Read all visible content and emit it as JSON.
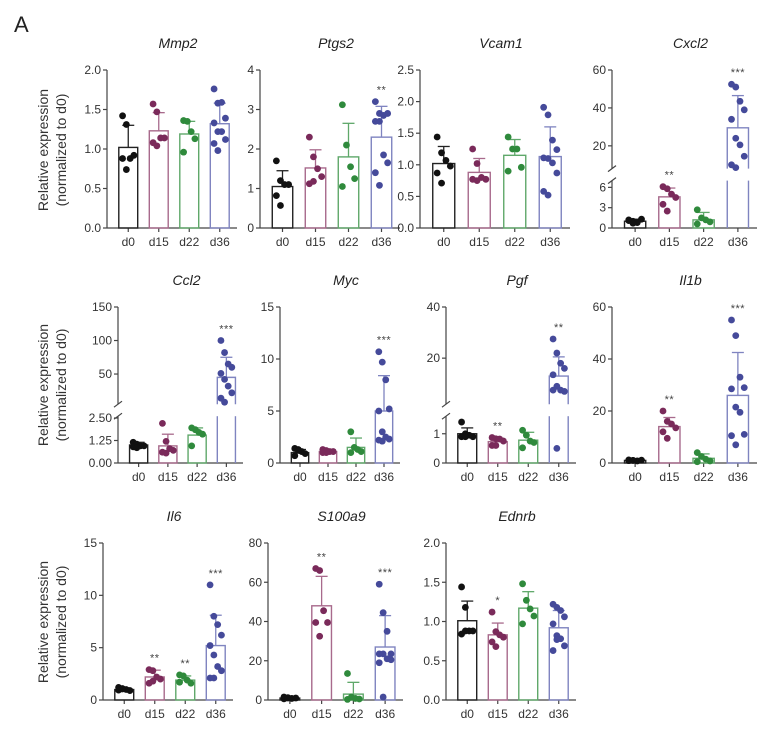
{
  "figure": {
    "panel_label": "A",
    "ylabel_line1": "Relative expression",
    "ylabel_line2": "(normalized to d0)"
  },
  "colors": {
    "d0": "#111111",
    "d15": "#7a2a5a",
    "d22": "#2f8a3c",
    "d36": "#454a9a",
    "bar_d0": "#222222",
    "bar_d15": "#a86a8c",
    "bar_d22": "#5fa86a",
    "bar_d36": "#7f84c0",
    "axis": "#444444"
  },
  "chart_data": [
    {
      "type": "bar",
      "title": "Mmp2",
      "categories": [
        "d0",
        "d15",
        "d22",
        "d36"
      ],
      "ylabel": "Relative expression (normalized to d0)",
      "yticks": [
        0.0,
        0.5,
        1.0,
        1.5,
        2.0
      ],
      "ytick_labels": [
        "0.0",
        "0.5",
        "1.0",
        "1.5",
        "2.0"
      ],
      "ylim": [
        0,
        2.0
      ],
      "means": [
        1.02,
        1.23,
        1.19,
        1.32
      ],
      "sd_upper": [
        1.3,
        1.46,
        1.35,
        1.58
      ],
      "points": [
        [
          1.42,
          1.31,
          0.88,
          0.92,
          0.88,
          0.74
        ],
        [
          1.57,
          1.47,
          1.14,
          1.14,
          1.08,
          1.04
        ],
        [
          1.36,
          1.35,
          1.22,
          1.13,
          0.96
        ],
        [
          1.76,
          1.58,
          1.59,
          1.39,
          1.33,
          1.22,
          1.22,
          1.12,
          1.07,
          0.98
        ]
      ],
      "significance": [
        "",
        "",
        "",
        ""
      ]
    },
    {
      "type": "bar",
      "title": "Ptgs2",
      "categories": [
        "d0",
        "d15",
        "d22",
        "d36"
      ],
      "yticks": [
        0,
        1,
        2,
        3,
        4
      ],
      "ytick_labels": [
        "0",
        "1",
        "2",
        "3",
        "4"
      ],
      "ylim": [
        0,
        4
      ],
      "means": [
        1.05,
        1.52,
        1.8,
        2.3
      ],
      "sd_upper": [
        1.45,
        1.98,
        2.65,
        3.08
      ],
      "points": [
        [
          1.7,
          1.2,
          1.1,
          1.1,
          0.82,
          0.57
        ],
        [
          2.3,
          1.8,
          1.5,
          1.3,
          1.12,
          1.18
        ],
        [
          3.12,
          2.1,
          1.55,
          1.25,
          1.05
        ],
        [
          3.2,
          2.9,
          2.85,
          2.9,
          2.7,
          2.7,
          1.85,
          1.65,
          1.4,
          1.08
        ]
      ],
      "significance": [
        "",
        "",
        "",
        "**"
      ]
    },
    {
      "type": "bar",
      "title": "Vcam1",
      "categories": [
        "d0",
        "d15",
        "d22",
        "d36"
      ],
      "yticks": [
        0.0,
        0.5,
        1.0,
        1.5,
        2.0,
        2.5
      ],
      "ytick_labels": [
        "0.0",
        "0.5",
        "1.0",
        "1.5",
        "2.0",
        "2.5"
      ],
      "ylim": [
        0,
        2.5
      ],
      "means": [
        1.02,
        0.88,
        1.15,
        1.13
      ],
      "sd_upper": [
        1.29,
        1.1,
        1.4,
        1.6
      ],
      "points": [
        [
          1.44,
          1.19,
          1.07,
          0.98,
          0.87,
          0.71
        ],
        [
          1.25,
          1.02,
          0.8,
          0.77,
          0.77,
          0.75
        ],
        [
          1.44,
          1.25,
          1.25,
          0.96,
          0.9
        ],
        [
          1.91,
          1.79,
          1.39,
          1.24,
          1.11,
          1.1,
          1.03,
          0.87,
          0.58,
          0.52
        ]
      ],
      "significance": [
        "",
        "",
        "",
        ""
      ]
    },
    {
      "type": "bar",
      "title": "Cxcl2",
      "categories": [
        "d0",
        "d15",
        "d22",
        "d36"
      ],
      "broken_axis": true,
      "lower_segment": {
        "range": [
          0,
          7
        ],
        "yticks": [
          0,
          3,
          6
        ],
        "ytick_labels": [
          "0",
          "3",
          "6"
        ]
      },
      "upper_segment": {
        "range": [
          8,
          60
        ],
        "yticks": [
          20,
          40,
          60
        ],
        "ytick_labels": [
          "20",
          "40",
          "60"
        ]
      },
      "ylim": [
        0,
        60
      ],
      "means": [
        1.0,
        4.6,
        1.2,
        29.5
      ],
      "sd_upper": [
        1.3,
        5.9,
        2.3,
        46.5
      ],
      "points": [
        [
          1.2,
          1.0,
          0.8,
          1.3,
          1.1,
          0.7
        ],
        [
          6.1,
          5.8,
          5.0,
          4.5,
          3.5,
          2.5
        ],
        [
          2.7,
          1.5,
          1.2,
          0.9,
          0.6
        ],
        [
          52.5,
          51.0,
          43.5,
          39.0,
          34.0,
          24.0,
          20.5,
          14.5,
          10.0,
          8.5
        ]
      ],
      "significance": [
        "",
        "**",
        "",
        "***"
      ]
    },
    {
      "type": "bar",
      "title": "Ccl2",
      "categories": [
        "d0",
        "d15",
        "d22",
        "d36"
      ],
      "broken_axis": true,
      "lower_segment": {
        "range": [
          0,
          2.6
        ],
        "yticks": [
          0,
          1.25,
          2.5
        ],
        "ytick_labels": [
          "0.00",
          "1.25",
          "2.50"
        ]
      },
      "upper_segment": {
        "range": [
          5,
          150
        ],
        "yticks": [
          50,
          100,
          150
        ],
        "ytick_labels": [
          "50",
          "100",
          "150"
        ]
      },
      "ylim": [
        0,
        150
      ],
      "means": [
        1.0,
        0.95,
        1.55,
        45
      ],
      "sd_upper": [
        1.15,
        1.6,
        1.95,
        75
      ],
      "points": [
        [
          1.15,
          1.05,
          0.95,
          0.95,
          0.9,
          0.85
        ],
        [
          2.2,
          1.2,
          0.8,
          0.7,
          0.6,
          0.55
        ],
        [
          1.95,
          1.85,
          1.7,
          1.6,
          0.95
        ],
        [
          100,
          82,
          65,
          60,
          51,
          42,
          32,
          22,
          14,
          8
        ]
      ],
      "significance": [
        "",
        "",
        "",
        "***"
      ]
    },
    {
      "type": "bar",
      "title": "Myc",
      "categories": [
        "d0",
        "d15",
        "d22",
        "d36"
      ],
      "yticks": [
        0,
        5,
        10,
        15
      ],
      "ytick_labels": [
        "0",
        "5",
        "10",
        "15"
      ],
      "ylim": [
        0,
        15
      ],
      "means": [
        1.0,
        1.1,
        1.5,
        5.0
      ],
      "sd_upper": [
        1.3,
        1.3,
        2.4,
        8.4
      ],
      "points": [
        [
          1.4,
          1.3,
          1.1,
          0.9,
          0.7,
          1.2
        ],
        [
          1.3,
          1.2,
          1.1,
          1.1,
          1.0,
          1.0
        ],
        [
          3.0,
          1.5,
          1.3,
          1.1,
          1.0
        ],
        [
          10.7,
          9.7,
          8.0,
          5.2,
          5.0,
          3.0,
          2.5,
          2.3,
          2.2,
          2.1
        ]
      ],
      "significance": [
        "",
        "",
        "",
        "***"
      ]
    },
    {
      "type": "bar",
      "title": "Pgf",
      "categories": [
        "d0",
        "d15",
        "d22",
        "d36"
      ],
      "broken_axis": true,
      "lower_segment": {
        "range": [
          0,
          1.6
        ],
        "yticks": [
          0,
          1
        ],
        "ytick_labels": [
          "0",
          "1"
        ]
      },
      "upper_segment": {
        "range": [
          2,
          40
        ],
        "yticks": [
          20,
          40
        ],
        "ytick_labels": [
          "20",
          "40"
        ]
      },
      "ylim": [
        0,
        40
      ],
      "means": [
        1.0,
        0.73,
        0.78,
        13.0
      ],
      "sd_upper": [
        1.2,
        0.85,
        1.05,
        20.5
      ],
      "points": [
        [
          1.4,
          1.0,
          0.95,
          0.9,
          0.9,
          0.9
        ],
        [
          0.87,
          0.83,
          0.82,
          0.75,
          0.6,
          0.6
        ],
        [
          1.12,
          0.95,
          0.75,
          0.7,
          0.52
        ],
        [
          27.5,
          22.0,
          18.0,
          16.0,
          13.5,
          9.0,
          7.5,
          7.0,
          7.5,
          0.5
        ]
      ],
      "significance": [
        "",
        "**",
        "",
        "**"
      ]
    },
    {
      "type": "bar",
      "title": "Il1b",
      "categories": [
        "d0",
        "d15",
        "d22",
        "d36"
      ],
      "yticks": [
        0,
        20,
        40,
        60
      ],
      "ytick_labels": [
        "0",
        "20",
        "40",
        "60"
      ],
      "ylim": [
        0,
        60
      ],
      "means": [
        1.0,
        14.0,
        1.8,
        26.0
      ],
      "sd_upper": [
        1.3,
        17.5,
        3.5,
        42.5
      ],
      "points": [
        [
          1.2,
          1.0,
          0.8,
          1.1,
          0.9,
          1.0
        ],
        [
          20.0,
          16.0,
          15.0,
          13.5,
          12.0,
          9.5
        ],
        [
          4.0,
          2.5,
          1.5,
          0.8,
          0.5
        ],
        [
          55.0,
          49.0,
          33.0,
          29.0,
          28.5,
          21.5,
          19.5,
          11.0,
          10.5,
          7.0
        ]
      ],
      "significance": [
        "",
        "**",
        "",
        "***"
      ]
    },
    {
      "type": "bar",
      "title": "Il6",
      "categories": [
        "d0",
        "d15",
        "d22",
        "d36"
      ],
      "yticks": [
        0,
        5,
        10,
        15
      ],
      "ytick_labels": [
        "0",
        "5",
        "10",
        "15"
      ],
      "ylim": [
        0,
        15
      ],
      "means": [
        1.0,
        2.2,
        1.9,
        5.2
      ],
      "sd_upper": [
        1.15,
        2.85,
        2.3,
        8.1
      ],
      "points": [
        [
          1.2,
          1.1,
          1.0,
          0.9,
          0.95,
          1.05
        ],
        [
          2.9,
          2.8,
          2.2,
          2.0,
          1.6,
          1.8
        ],
        [
          2.4,
          2.3,
          1.9,
          1.6,
          1.7
        ],
        [
          11.0,
          8.0,
          7.2,
          6.2,
          5.2,
          4.3,
          3.2,
          2.8,
          2.1,
          2.1
        ]
      ],
      "significance": [
        "",
        "**",
        "**",
        "***"
      ]
    },
    {
      "type": "bar",
      "title": "S100a9",
      "categories": [
        "d0",
        "d15",
        "d22",
        "d36"
      ],
      "yticks": [
        0,
        20,
        40,
        60,
        80
      ],
      "ytick_labels": [
        "0",
        "20",
        "40",
        "60",
        "80"
      ],
      "ylim": [
        0,
        80
      ],
      "means": [
        1.0,
        48.0,
        3.0,
        27.0
      ],
      "sd_upper": [
        1.5,
        63.0,
        9.0,
        43.0
      ],
      "points": [
        [
          1.5,
          1.2,
          0.8,
          1.0,
          0.6,
          1.0
        ],
        [
          67.0,
          66.0,
          45.5,
          39.5,
          39.5,
          32.5
        ],
        [
          13.5,
          1.5,
          0.8,
          0.5,
          0.3
        ],
        [
          59.0,
          44.5,
          35.0,
          23.5,
          23.5,
          23.5,
          21.0,
          20.5,
          19.0,
          1.5
        ]
      ],
      "significance": [
        "",
        "**",
        "",
        "***"
      ]
    },
    {
      "type": "bar",
      "title": "Ednrb",
      "categories": [
        "d0",
        "d15",
        "d22",
        "d36"
      ],
      "yticks": [
        0.0,
        0.5,
        1.0,
        1.5,
        2.0
      ],
      "ytick_labels": [
        "0.0",
        "0.5",
        "1.0",
        "1.5",
        "2.0"
      ],
      "ylim": [
        0,
        2.0
      ],
      "means": [
        1.01,
        0.83,
        1.17,
        0.92
      ],
      "sd_upper": [
        1.26,
        0.98,
        1.38,
        1.14
      ],
      "points": [
        [
          1.44,
          1.18,
          0.88,
          0.88,
          0.84,
          0.88
        ],
        [
          1.12,
          0.87,
          0.83,
          0.8,
          0.74,
          0.68
        ],
        [
          1.48,
          1.27,
          1.16,
          1.07,
          0.97
        ],
        [
          1.22,
          1.18,
          1.14,
          1.06,
          0.97,
          0.82,
          0.78,
          0.69,
          0.63,
          0.77
        ]
      ],
      "significance": [
        "",
        "*",
        "",
        ""
      ]
    }
  ]
}
